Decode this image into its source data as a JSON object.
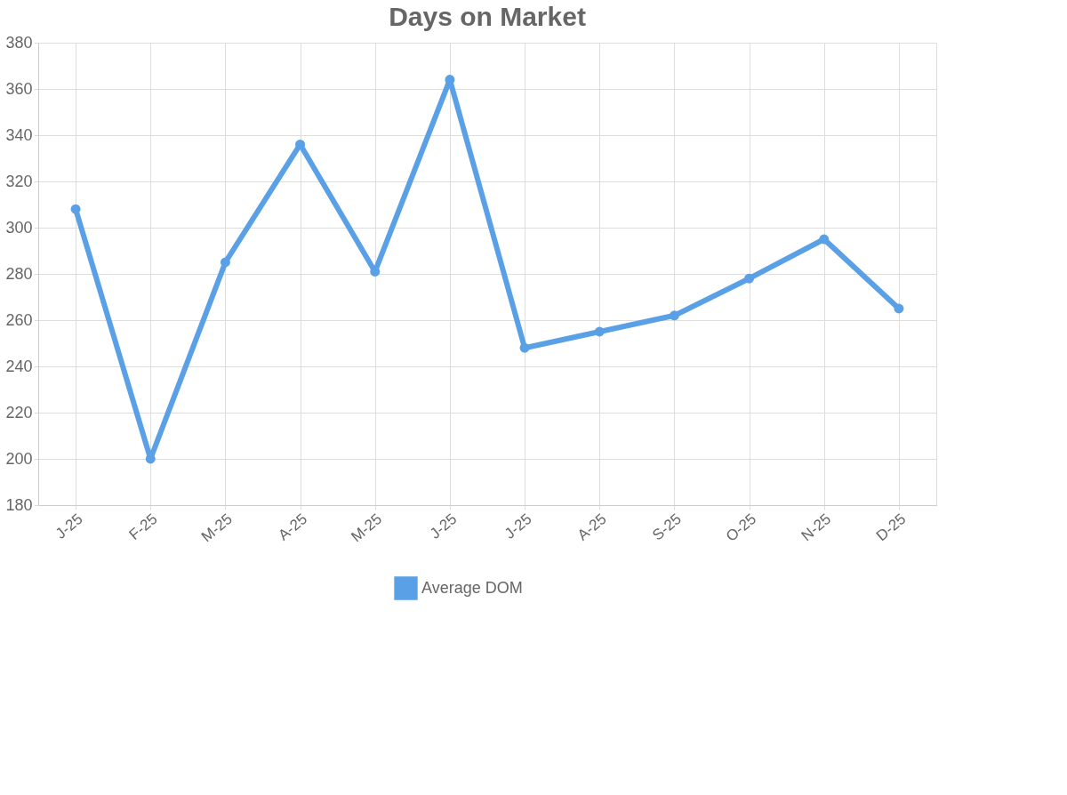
{
  "chart_data": {
    "type": "line",
    "title": "Days on Market",
    "categories": [
      "J-25",
      "F-25",
      "M-25",
      "A-25",
      "M-25",
      "J-25",
      "J-25",
      "A-25",
      "S-25",
      "O-25",
      "N-25",
      "D-25"
    ],
    "series": [
      {
        "name": "Average DOM",
        "color": "#5aa0e6",
        "values": [
          308,
          200,
          285,
          336,
          281,
          364,
          248,
          255,
          262,
          278,
          295,
          265
        ]
      }
    ],
    "ylim": [
      180,
      380
    ],
    "yticks": [
      180,
      200,
      220,
      240,
      260,
      280,
      300,
      320,
      340,
      360,
      380
    ],
    "grid": true,
    "legend": "bottom",
    "marker": "circle",
    "line_style": "solid"
  }
}
